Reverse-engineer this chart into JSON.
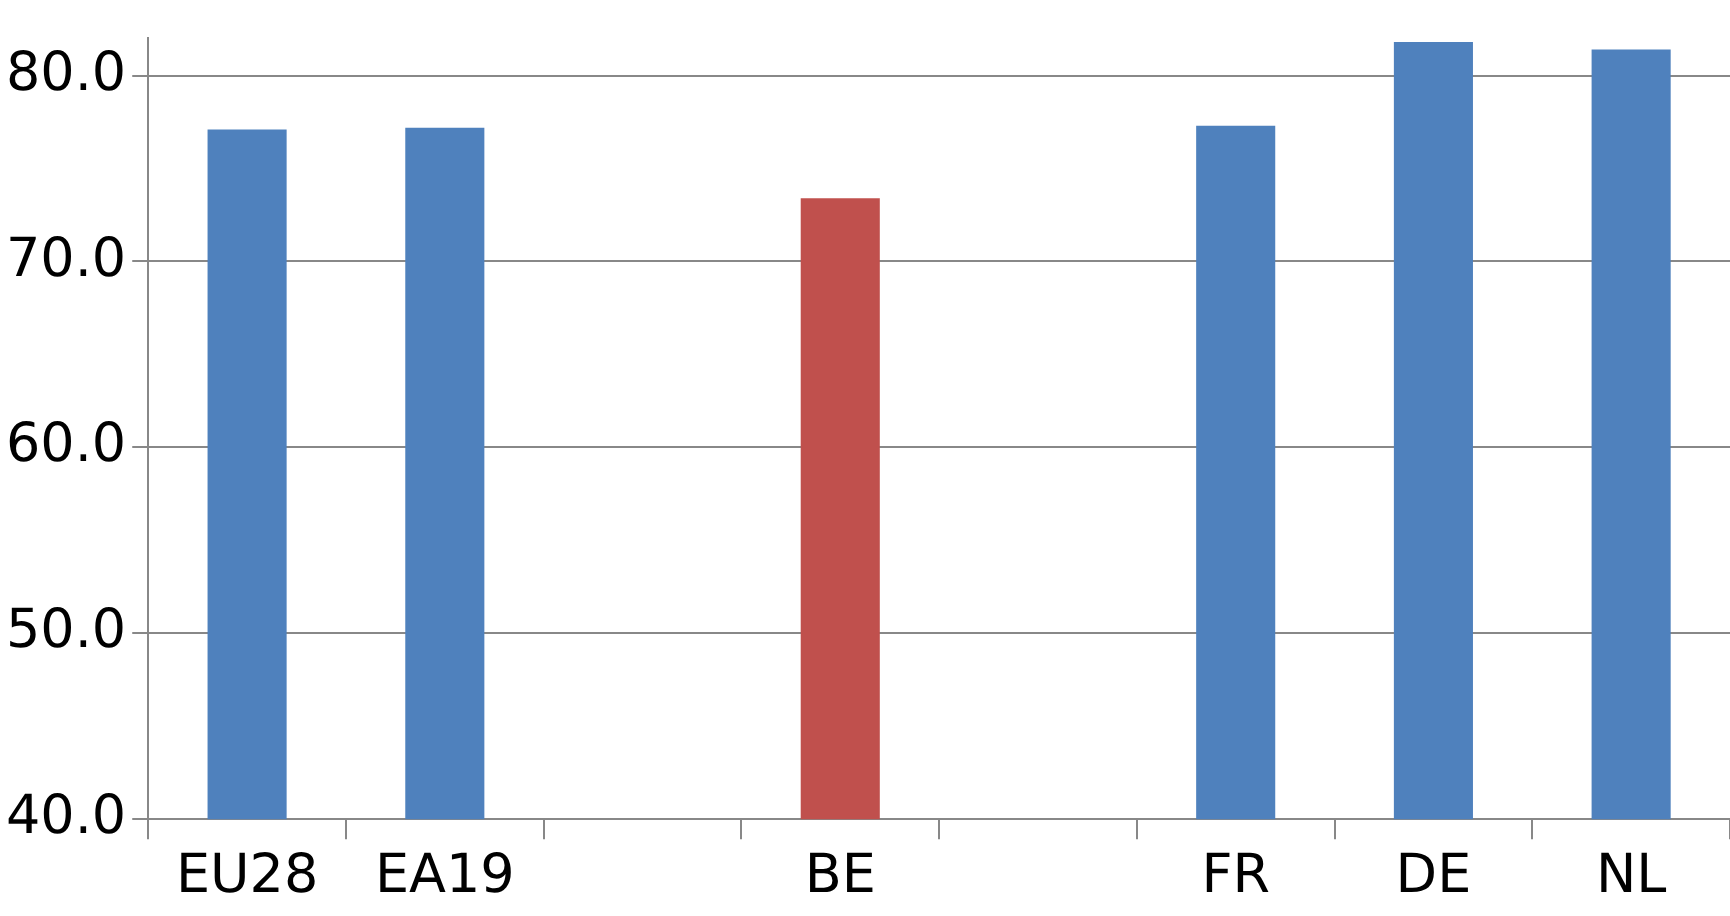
{
  "chart_data": {
    "type": "bar",
    "categories": [
      "EU28",
      "EA19",
      null,
      "BE",
      null,
      "FR",
      "DE",
      "NL"
    ],
    "values": [
      77.1,
      77.2,
      null,
      73.4,
      null,
      77.3,
      81.8,
      81.4
    ],
    "colors": [
      "#4f81bd",
      "#4f81bd",
      "#4f81bd",
      "#c0504d",
      "#4f81bd",
      "#4f81bd",
      "#4f81bd",
      "#4f81bd"
    ],
    "ylim": [
      40,
      82
    ],
    "yticks": [
      {
        "value": 40,
        "label": "40.0"
      },
      {
        "value": 50,
        "label": "50.0"
      },
      {
        "value": 60,
        "label": "60.0"
      },
      {
        "value": 70,
        "label": "70.0"
      },
      {
        "value": 80,
        "label": "80.0"
      }
    ],
    "grid": "y",
    "legend": false
  }
}
